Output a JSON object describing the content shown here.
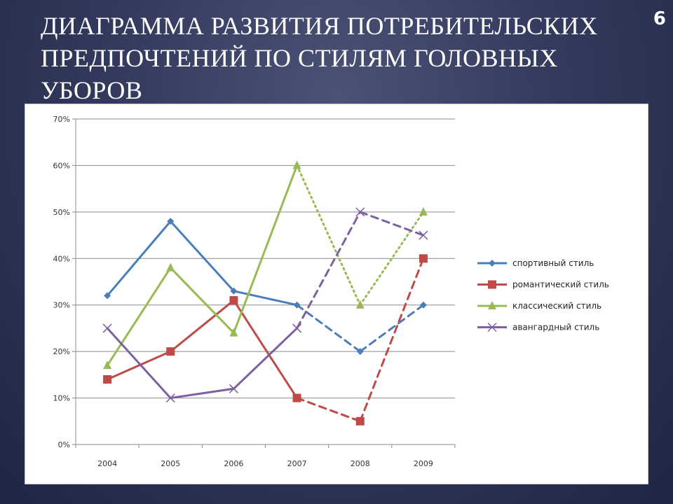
{
  "slide": {
    "title": "ДИАГРАММА РАЗВИТИЯ ПОТРЕБИТЕЛЬСКИХ ПРЕДПОЧТЕНИЙ ПО СТИЛЯМ ГОЛОВНЫХ УБОРОВ",
    "number": "6"
  },
  "chart_data": {
    "type": "line",
    "title": "",
    "xlabel": "",
    "ylabel": "",
    "categories": [
      "2004",
      "2005",
      "2006",
      "2007",
      "2008",
      "2009"
    ],
    "ylim": [
      0,
      70
    ],
    "yticks": [
      "0%",
      "10%",
      "20%",
      "30%",
      "40%",
      "50%",
      "60%",
      "70%"
    ],
    "grid": true,
    "legend_position": "right",
    "series": [
      {
        "name": "спортивный стиль",
        "values": [
          32,
          48,
          33,
          30,
          20,
          30
        ],
        "color": "#4a7ebb",
        "marker": "diamond"
      },
      {
        "name": "романтический стиль",
        "values": [
          14,
          20,
          31,
          10,
          5,
          40
        ],
        "color": "#be4b48",
        "marker": "square"
      },
      {
        "name": "классический стиль",
        "values": [
          17,
          38,
          24,
          60,
          30,
          50
        ],
        "color": "#98b954",
        "marker": "triangle"
      },
      {
        "name": "авангардный стиль",
        "values": [
          25,
          10,
          12,
          25,
          50,
          45
        ],
        "color": "#7d60a0",
        "marker": "x"
      }
    ]
  }
}
